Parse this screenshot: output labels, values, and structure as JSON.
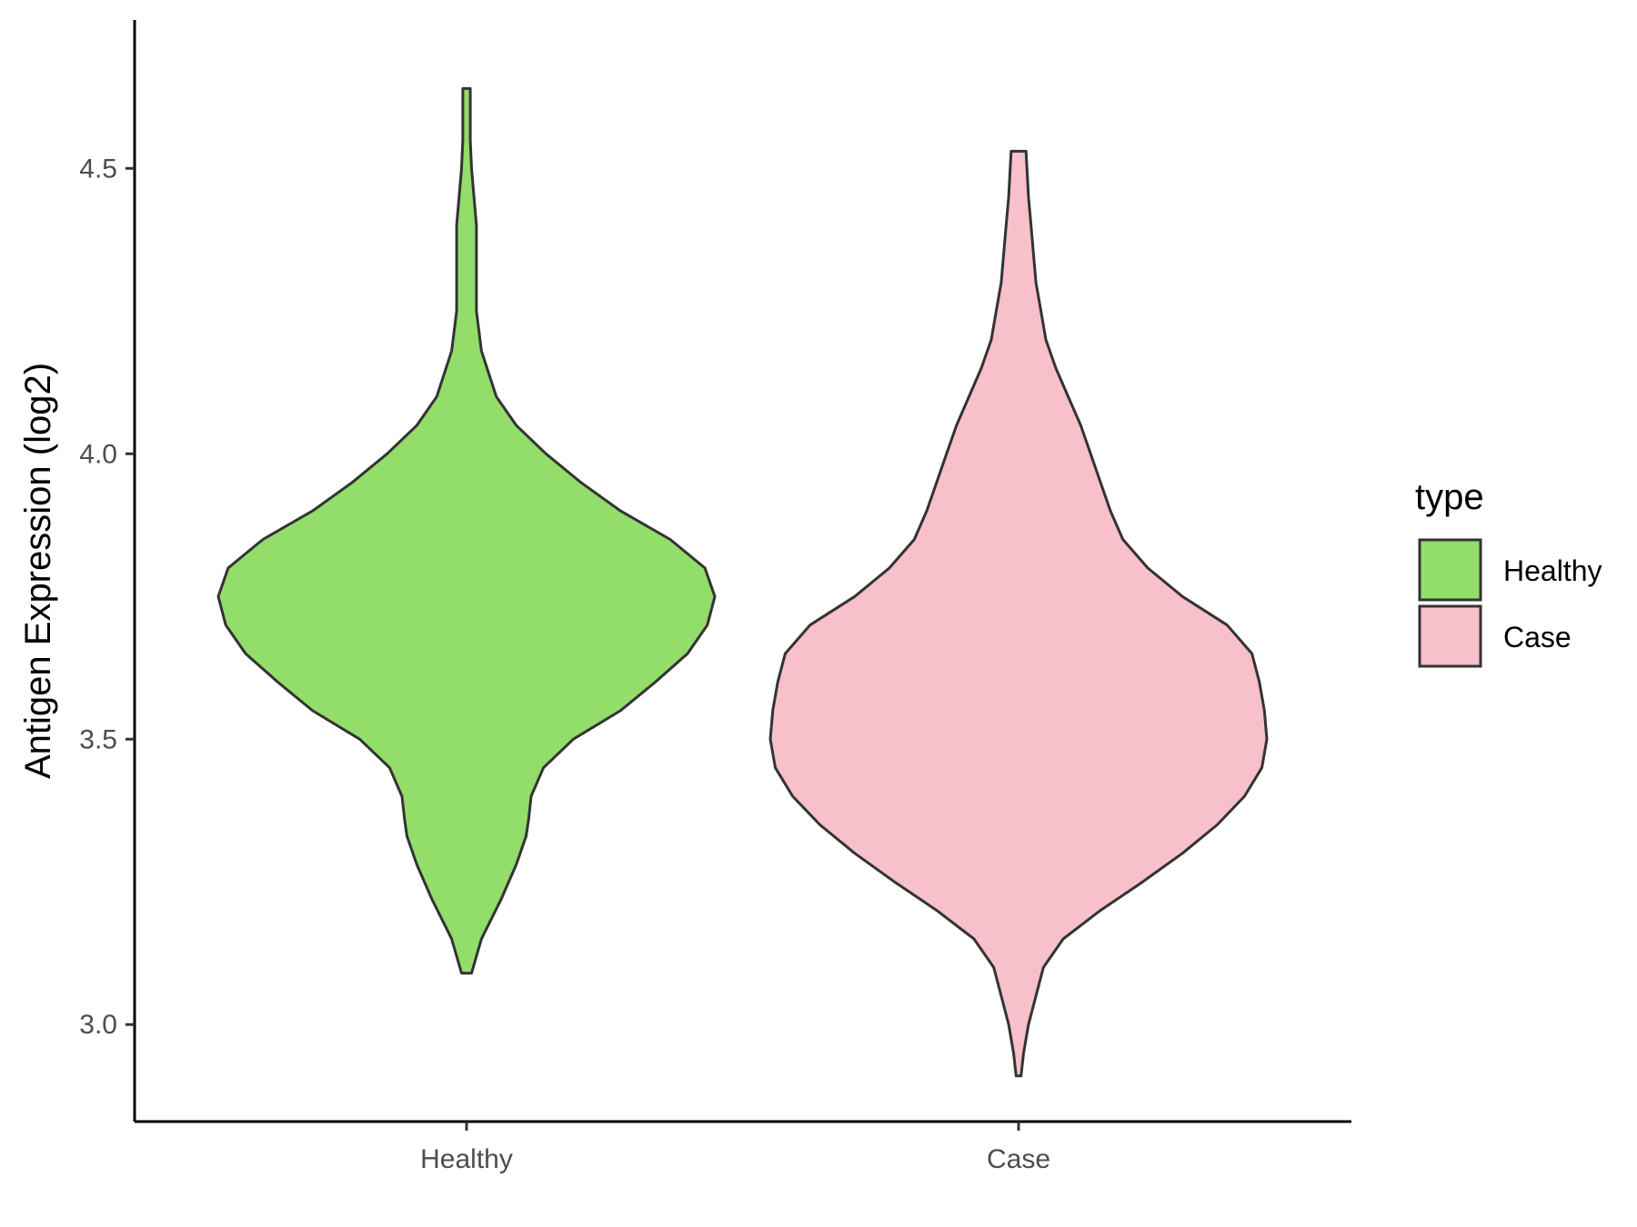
{
  "chart_data": {
    "type": "violin",
    "ylabel": "Antigen Expression (log2)",
    "xlabel": "",
    "ylim": [
      2.83,
      4.76
    ],
    "y_ticks": [
      "3.0",
      "3.5",
      "4.0",
      "4.5"
    ],
    "categories": [
      "Healthy",
      "Case"
    ],
    "grid": false,
    "legend": {
      "title": "type",
      "position": "right",
      "entries": [
        "Healthy",
        "Case"
      ]
    },
    "series": [
      {
        "name": "Healthy",
        "color": "#93dd6b",
        "density": [
          [
            3.09,
            0.02
          ],
          [
            3.15,
            0.06
          ],
          [
            3.22,
            0.14
          ],
          [
            3.28,
            0.2
          ],
          [
            3.33,
            0.24
          ],
          [
            3.36,
            0.25
          ],
          [
            3.4,
            0.26
          ],
          [
            3.45,
            0.31
          ],
          [
            3.5,
            0.43
          ],
          [
            3.55,
            0.62
          ],
          [
            3.6,
            0.76
          ],
          [
            3.65,
            0.89
          ],
          [
            3.7,
            0.97
          ],
          [
            3.75,
            1.0
          ],
          [
            3.8,
            0.96
          ],
          [
            3.85,
            0.82
          ],
          [
            3.9,
            0.62
          ],
          [
            3.95,
            0.46
          ],
          [
            4.0,
            0.32
          ],
          [
            4.05,
            0.2
          ],
          [
            4.1,
            0.12
          ],
          [
            4.18,
            0.06
          ],
          [
            4.25,
            0.04
          ],
          [
            4.33,
            0.04
          ],
          [
            4.4,
            0.04
          ],
          [
            4.45,
            0.03
          ],
          [
            4.5,
            0.02
          ],
          [
            4.55,
            0.015
          ],
          [
            4.64,
            0.015
          ]
        ]
      },
      {
        "name": "Case",
        "color": "#f7c0cb",
        "density": [
          [
            2.91,
            0.01
          ],
          [
            2.95,
            0.02
          ],
          [
            3.0,
            0.04
          ],
          [
            3.05,
            0.07
          ],
          [
            3.1,
            0.1
          ],
          [
            3.15,
            0.18
          ],
          [
            3.2,
            0.33
          ],
          [
            3.25,
            0.5
          ],
          [
            3.3,
            0.66
          ],
          [
            3.35,
            0.8
          ],
          [
            3.4,
            0.91
          ],
          [
            3.45,
            0.98
          ],
          [
            3.5,
            1.0
          ],
          [
            3.55,
            0.99
          ],
          [
            3.6,
            0.97
          ],
          [
            3.65,
            0.94
          ],
          [
            3.7,
            0.84
          ],
          [
            3.75,
            0.66
          ],
          [
            3.8,
            0.52
          ],
          [
            3.85,
            0.42
          ],
          [
            3.9,
            0.37
          ],
          [
            3.95,
            0.33
          ],
          [
            4.0,
            0.29
          ],
          [
            4.05,
            0.25
          ],
          [
            4.1,
            0.2
          ],
          [
            4.15,
            0.15
          ],
          [
            4.2,
            0.11
          ],
          [
            4.25,
            0.09
          ],
          [
            4.3,
            0.07
          ],
          [
            4.35,
            0.06
          ],
          [
            4.4,
            0.05
          ],
          [
            4.45,
            0.04
          ],
          [
            4.53,
            0.03
          ]
        ]
      }
    ]
  }
}
